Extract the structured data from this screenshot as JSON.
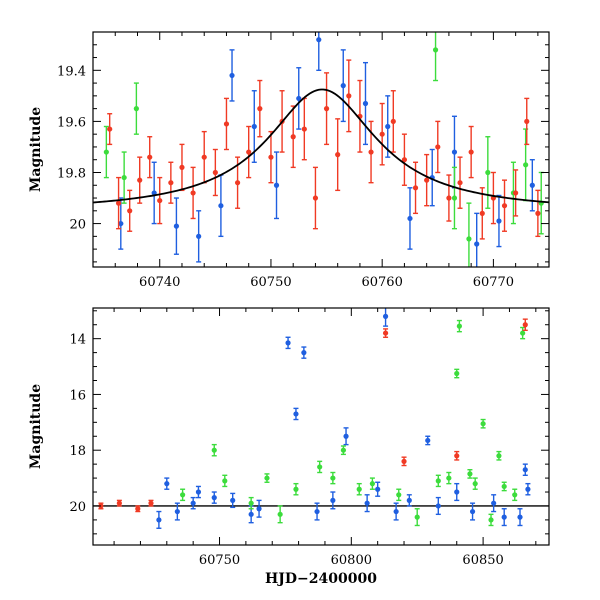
{
  "colors": {
    "blue": "#1f5fe0",
    "green": "#3cdc3c",
    "red": "#f03a24",
    "model": "#000000"
  },
  "chart_data": [
    {
      "type": "scatter",
      "title": "",
      "xlabel": "",
      "ylabel": "Magnitude",
      "xlim": [
        60734,
        60775
      ],
      "ylim": [
        20.17,
        19.25
      ],
      "y_inverted": true,
      "xticks": [
        60740,
        60750,
        60760,
        60770
      ],
      "yticks": [
        19.4,
        19.6,
        19.8,
        20.0
      ],
      "ytick_labels": [
        "19.4",
        "19.6",
        "19.8",
        "20"
      ],
      "model_curve": {
        "type": "line",
        "color": "black",
        "baseline_mag": 19.955,
        "peak_mag": 19.475,
        "peak_x": 60754.6,
        "width": 6.0
      },
      "series": [
        {
          "color": "blue",
          "points": [
            [
              60736.5,
              20.0,
              0.1
            ],
            [
              60739.5,
              19.88,
              0.12
            ],
            [
              60741.5,
              20.01,
              0.11
            ],
            [
              60743.5,
              20.05,
              0.1
            ],
            [
              60745.5,
              19.93,
              0.12
            ],
            [
              60746.5,
              19.42,
              0.1
            ],
            [
              60748.5,
              19.62,
              0.14
            ],
            [
              60750.5,
              19.85,
              0.13
            ],
            [
              60752.5,
              19.51,
              0.12
            ],
            [
              60754.3,
              19.28,
              0.12
            ],
            [
              60756.5,
              19.46,
              0.14
            ],
            [
              60758.5,
              19.53,
              0.16
            ],
            [
              60760.5,
              19.62,
              0.12
            ],
            [
              60762.5,
              19.98,
              0.12
            ],
            [
              60764.5,
              19.82,
              0.11
            ],
            [
              60766.5,
              19.72,
              0.14
            ],
            [
              60768.5,
              20.08,
              0.12
            ],
            [
              60770.5,
              19.99,
              0.1
            ],
            [
              60773.5,
              19.85,
              0.1
            ]
          ]
        },
        {
          "color": "green",
          "points": [
            [
              60735.2,
              19.72,
              0.1
            ],
            [
              60736.8,
              19.82,
              0.1
            ],
            [
              60737.9,
              19.55,
              0.1
            ],
            [
              60764.8,
              19.32,
              0.12
            ],
            [
              60766.5,
              19.9,
              0.12
            ],
            [
              60767.8,
              20.06,
              0.14
            ],
            [
              60769.5,
              19.8,
              0.14
            ],
            [
              60771.8,
              19.88,
              0.12
            ],
            [
              60772.9,
              19.77,
              0.14
            ],
            [
              60774.3,
              19.92,
              0.12
            ]
          ]
        },
        {
          "color": "red",
          "points": [
            [
              60735.5,
              19.63,
              0.06
            ],
            [
              60736.3,
              19.92,
              0.1
            ],
            [
              60737.3,
              19.95,
              0.08
            ],
            [
              60738.2,
              19.83,
              0.09
            ],
            [
              60739.1,
              19.74,
              0.08
            ],
            [
              60740.0,
              19.91,
              0.09
            ],
            [
              60741.0,
              19.84,
              0.08
            ],
            [
              60742.0,
              19.78,
              0.09
            ],
            [
              60743.0,
              19.88,
              0.1
            ],
            [
              60744.0,
              19.74,
              0.1
            ],
            [
              60745.0,
              19.8,
              0.09
            ],
            [
              60746.0,
              19.61,
              0.1
            ],
            [
              60747.0,
              19.84,
              0.1
            ],
            [
              60748.0,
              19.72,
              0.1
            ],
            [
              60749.0,
              19.55,
              0.11
            ],
            [
              60750.0,
              19.74,
              0.1
            ],
            [
              60751.0,
              19.6,
              0.12
            ],
            [
              60752.0,
              19.66,
              0.12
            ],
            [
              60753.0,
              19.63,
              0.12
            ],
            [
              60754.0,
              19.9,
              0.12
            ],
            [
              60755.0,
              19.55,
              0.14
            ],
            [
              60756.0,
              19.73,
              0.14
            ],
            [
              60757.0,
              19.5,
              0.14
            ],
            [
              60758.0,
              19.58,
              0.14
            ],
            [
              60759.0,
              19.72,
              0.12
            ],
            [
              60760.0,
              19.65,
              0.12
            ],
            [
              60761.0,
              19.6,
              0.12
            ],
            [
              60762.0,
              19.75,
              0.1
            ],
            [
              60763.0,
              19.86,
              0.1
            ],
            [
              60764.0,
              19.83,
              0.1
            ],
            [
              60765.0,
              19.7,
              0.1
            ],
            [
              60766.0,
              19.9,
              0.09
            ],
            [
              60767.0,
              19.84,
              0.1
            ],
            [
              60768.0,
              19.72,
              0.1
            ],
            [
              60769.0,
              19.96,
              0.1
            ],
            [
              60770.0,
              19.9,
              0.1
            ],
            [
              60771.0,
              19.93,
              0.1
            ],
            [
              60772.0,
              19.88,
              0.09
            ],
            [
              60773.0,
              19.6,
              0.09
            ],
            [
              60774.0,
              19.96,
              0.09
            ]
          ]
        }
      ]
    },
    {
      "type": "scatter",
      "title": "",
      "xlabel": "HJD−2400000",
      "ylabel": "Magnitude",
      "xlim": [
        60702,
        60875
      ],
      "ylim": [
        21.4,
        12.9
      ],
      "y_inverted": true,
      "xticks": [
        60750,
        60800,
        60850
      ],
      "yticks": [
        14,
        16,
        18,
        20
      ],
      "baseline_mag": 20.0,
      "series": [
        {
          "color": "blue",
          "points": [
            [
              60727,
              20.5,
              0.3
            ],
            [
              60730,
              19.2,
              0.2
            ],
            [
              60734,
              20.2,
              0.3
            ],
            [
              60740,
              19.9,
              0.2
            ],
            [
              60742,
              19.5,
              0.2
            ],
            [
              60748,
              19.7,
              0.2
            ],
            [
              60755,
              19.8,
              0.25
            ],
            [
              60762,
              20.3,
              0.3
            ],
            [
              60765,
              20.1,
              0.3
            ],
            [
              60776,
              14.15,
              0.2
            ],
            [
              60779,
              16.7,
              0.2
            ],
            [
              60782,
              14.5,
              0.2
            ],
            [
              60787,
              20.2,
              0.3
            ],
            [
              60793,
              19.8,
              0.3
            ],
            [
              60798,
              17.5,
              0.3
            ],
            [
              60806,
              19.9,
              0.3
            ],
            [
              60810,
              19.4,
              0.25
            ],
            [
              60813,
              13.2,
              0.35
            ],
            [
              60817,
              20.2,
              0.3
            ],
            [
              60822,
              19.8,
              0.2
            ],
            [
              60829,
              17.65,
              0.15
            ],
            [
              60833,
              20.0,
              0.3
            ],
            [
              60840,
              19.5,
              0.3
            ],
            [
              60846,
              20.2,
              0.3
            ],
            [
              60854,
              19.9,
              0.3
            ],
            [
              60858,
              20.4,
              0.3
            ],
            [
              60864,
              20.4,
              0.3
            ],
            [
              60866,
              18.7,
              0.2
            ],
            [
              60867,
              19.4,
              0.2
            ]
          ]
        },
        {
          "color": "green",
          "points": [
            [
              60736,
              19.6,
              0.2
            ],
            [
              60748,
              18.0,
              0.2
            ],
            [
              60752,
              19.1,
              0.2
            ],
            [
              60762,
              19.9,
              0.2
            ],
            [
              60768,
              19.0,
              0.15
            ],
            [
              60773,
              20.3,
              0.3
            ],
            [
              60779,
              19.4,
              0.2
            ],
            [
              60788,
              18.6,
              0.2
            ],
            [
              60793,
              19.0,
              0.2
            ],
            [
              60797,
              18.0,
              0.15
            ],
            [
              60803,
              19.4,
              0.2
            ],
            [
              60808,
              19.2,
              0.2
            ],
            [
              60818,
              19.6,
              0.2
            ],
            [
              60825,
              20.4,
              0.3
            ],
            [
              60833,
              19.1,
              0.2
            ],
            [
              60837,
              19.0,
              0.2
            ],
            [
              60840,
              15.25,
              0.15
            ],
            [
              60841,
              13.55,
              0.2
            ],
            [
              60845,
              18.85,
              0.15
            ],
            [
              60847,
              19.2,
              0.2
            ],
            [
              60850,
              17.05,
              0.15
            ],
            [
              60853,
              20.5,
              0.2
            ],
            [
              60856,
              18.2,
              0.15
            ],
            [
              60858,
              19.3,
              0.15
            ],
            [
              60862,
              19.6,
              0.2
            ],
            [
              60865,
              13.8,
              0.2
            ]
          ]
        },
        {
          "color": "red",
          "points": [
            [
              60705,
              20.0,
              0.1
            ],
            [
              60712,
              19.9,
              0.1
            ],
            [
              60719,
              20.1,
              0.1
            ],
            [
              60724,
              19.9,
              0.1
            ],
            [
              60813,
              13.8,
              0.15
            ],
            [
              60820,
              18.4,
              0.15
            ],
            [
              60840,
              18.2,
              0.15
            ],
            [
              60866,
              13.5,
              0.2
            ]
          ]
        }
      ]
    }
  ]
}
